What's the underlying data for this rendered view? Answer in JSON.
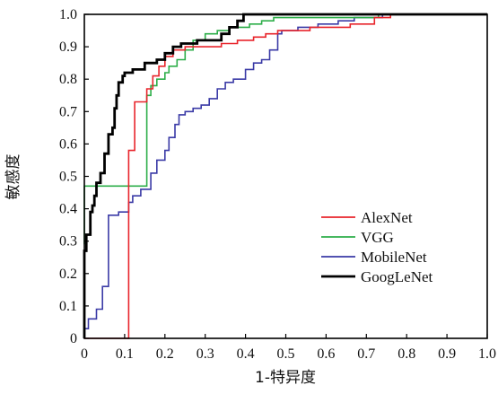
{
  "chart_data": {
    "type": "line",
    "title": "",
    "xlabel": "1-特异度",
    "ylabel": "敏感度",
    "xlim": [
      0,
      1.0
    ],
    "ylim": [
      0,
      1.0
    ],
    "x_ticks": [
      "0",
      "0.1",
      "0.2",
      "0.3",
      "0.4",
      "0.5",
      "0.6",
      "0.7",
      "0.8",
      "0.9",
      "1.0"
    ],
    "y_ticks": [
      "0",
      "0.1",
      "0.2",
      "0.3",
      "0.4",
      "0.5",
      "0.6",
      "0.7",
      "0.8",
      "0.9",
      "1.0"
    ],
    "grid": false,
    "legend_position": "lower-right",
    "series": [
      {
        "name": "AlexNet",
        "color": "#e8242b",
        "points": [
          [
            0,
            0
          ],
          [
            0.11,
            0
          ],
          [
            0.11,
            0.58
          ],
          [
            0.125,
            0.58
          ],
          [
            0.125,
            0.73
          ],
          [
            0.155,
            0.73
          ],
          [
            0.155,
            0.77
          ],
          [
            0.17,
            0.77
          ],
          [
            0.17,
            0.81
          ],
          [
            0.185,
            0.81
          ],
          [
            0.185,
            0.84
          ],
          [
            0.2,
            0.84
          ],
          [
            0.2,
            0.87
          ],
          [
            0.22,
            0.87
          ],
          [
            0.22,
            0.89
          ],
          [
            0.25,
            0.89
          ],
          [
            0.25,
            0.9
          ],
          [
            0.34,
            0.9
          ],
          [
            0.34,
            0.91
          ],
          [
            0.38,
            0.91
          ],
          [
            0.38,
            0.92
          ],
          [
            0.42,
            0.92
          ],
          [
            0.42,
            0.93
          ],
          [
            0.45,
            0.93
          ],
          [
            0.45,
            0.94
          ],
          [
            0.48,
            0.94
          ],
          [
            0.48,
            0.95
          ],
          [
            0.56,
            0.95
          ],
          [
            0.56,
            0.96
          ],
          [
            0.66,
            0.96
          ],
          [
            0.66,
            0.97
          ],
          [
            0.72,
            0.97
          ],
          [
            0.72,
            0.99
          ],
          [
            0.76,
            0.99
          ],
          [
            0.76,
            1.0
          ],
          [
            1.0,
            1.0
          ]
        ]
      },
      {
        "name": "VGG",
        "color": "#2dae49",
        "points": [
          [
            0,
            0.29
          ],
          [
            0,
            0.47
          ],
          [
            0.155,
            0.47
          ],
          [
            0.155,
            0.75
          ],
          [
            0.165,
            0.75
          ],
          [
            0.165,
            0.78
          ],
          [
            0.18,
            0.78
          ],
          [
            0.18,
            0.8
          ],
          [
            0.2,
            0.8
          ],
          [
            0.2,
            0.82
          ],
          [
            0.21,
            0.82
          ],
          [
            0.21,
            0.84
          ],
          [
            0.23,
            0.84
          ],
          [
            0.23,
            0.86
          ],
          [
            0.25,
            0.86
          ],
          [
            0.25,
            0.89
          ],
          [
            0.27,
            0.89
          ],
          [
            0.27,
            0.92
          ],
          [
            0.3,
            0.92
          ],
          [
            0.3,
            0.94
          ],
          [
            0.33,
            0.94
          ],
          [
            0.33,
            0.95
          ],
          [
            0.36,
            0.95
          ],
          [
            0.36,
            0.96
          ],
          [
            0.41,
            0.96
          ],
          [
            0.41,
            0.97
          ],
          [
            0.44,
            0.97
          ],
          [
            0.44,
            0.98
          ],
          [
            0.47,
            0.98
          ],
          [
            0.47,
            0.99
          ],
          [
            0.73,
            0.99
          ],
          [
            0.73,
            1.0
          ],
          [
            1.0,
            1.0
          ]
        ]
      },
      {
        "name": "MobileNet",
        "color": "#3a3aa6",
        "points": [
          [
            0,
            0
          ],
          [
            0,
            0.03
          ],
          [
            0.01,
            0.03
          ],
          [
            0.01,
            0.06
          ],
          [
            0.03,
            0.06
          ],
          [
            0.03,
            0.09
          ],
          [
            0.045,
            0.09
          ],
          [
            0.045,
            0.16
          ],
          [
            0.06,
            0.16
          ],
          [
            0.06,
            0.38
          ],
          [
            0.085,
            0.38
          ],
          [
            0.085,
            0.39
          ],
          [
            0.11,
            0.39
          ],
          [
            0.11,
            0.42
          ],
          [
            0.12,
            0.42
          ],
          [
            0.12,
            0.44
          ],
          [
            0.14,
            0.44
          ],
          [
            0.14,
            0.46
          ],
          [
            0.165,
            0.46
          ],
          [
            0.165,
            0.51
          ],
          [
            0.18,
            0.51
          ],
          [
            0.18,
            0.55
          ],
          [
            0.2,
            0.55
          ],
          [
            0.2,
            0.58
          ],
          [
            0.21,
            0.58
          ],
          [
            0.21,
            0.62
          ],
          [
            0.225,
            0.62
          ],
          [
            0.225,
            0.66
          ],
          [
            0.235,
            0.66
          ],
          [
            0.235,
            0.69
          ],
          [
            0.25,
            0.69
          ],
          [
            0.25,
            0.7
          ],
          [
            0.27,
            0.7
          ],
          [
            0.27,
            0.71
          ],
          [
            0.29,
            0.71
          ],
          [
            0.29,
            0.72
          ],
          [
            0.31,
            0.72
          ],
          [
            0.31,
            0.74
          ],
          [
            0.33,
            0.74
          ],
          [
            0.33,
            0.77
          ],
          [
            0.35,
            0.77
          ],
          [
            0.35,
            0.79
          ],
          [
            0.37,
            0.79
          ],
          [
            0.37,
            0.8
          ],
          [
            0.4,
            0.8
          ],
          [
            0.4,
            0.83
          ],
          [
            0.42,
            0.83
          ],
          [
            0.42,
            0.85
          ],
          [
            0.44,
            0.85
          ],
          [
            0.44,
            0.86
          ],
          [
            0.46,
            0.86
          ],
          [
            0.46,
            0.89
          ],
          [
            0.48,
            0.89
          ],
          [
            0.48,
            0.94
          ],
          [
            0.49,
            0.94
          ],
          [
            0.49,
            0.95
          ],
          [
            0.53,
            0.95
          ],
          [
            0.53,
            0.96
          ],
          [
            0.58,
            0.96
          ],
          [
            0.58,
            0.97
          ],
          [
            0.63,
            0.97
          ],
          [
            0.63,
            0.98
          ],
          [
            0.67,
            0.98
          ],
          [
            0.67,
            0.99
          ],
          [
            0.74,
            0.99
          ],
          [
            0.74,
            1.0
          ],
          [
            1.0,
            1.0
          ]
        ]
      },
      {
        "name": "GoogLeNet",
        "color": "#000000",
        "points": [
          [
            0,
            0
          ],
          [
            0,
            0.27
          ],
          [
            0.005,
            0.27
          ],
          [
            0.005,
            0.32
          ],
          [
            0.015,
            0.32
          ],
          [
            0.015,
            0.39
          ],
          [
            0.02,
            0.39
          ],
          [
            0.02,
            0.41
          ],
          [
            0.025,
            0.41
          ],
          [
            0.025,
            0.44
          ],
          [
            0.03,
            0.44
          ],
          [
            0.03,
            0.48
          ],
          [
            0.04,
            0.48
          ],
          [
            0.04,
            0.51
          ],
          [
            0.05,
            0.51
          ],
          [
            0.05,
            0.57
          ],
          [
            0.06,
            0.57
          ],
          [
            0.06,
            0.63
          ],
          [
            0.07,
            0.63
          ],
          [
            0.07,
            0.65
          ],
          [
            0.075,
            0.65
          ],
          [
            0.075,
            0.71
          ],
          [
            0.08,
            0.71
          ],
          [
            0.08,
            0.75
          ],
          [
            0.085,
            0.75
          ],
          [
            0.085,
            0.79
          ],
          [
            0.095,
            0.79
          ],
          [
            0.095,
            0.81
          ],
          [
            0.1,
            0.81
          ],
          [
            0.1,
            0.82
          ],
          [
            0.12,
            0.82
          ],
          [
            0.12,
            0.83
          ],
          [
            0.15,
            0.83
          ],
          [
            0.15,
            0.85
          ],
          [
            0.18,
            0.85
          ],
          [
            0.18,
            0.86
          ],
          [
            0.2,
            0.86
          ],
          [
            0.2,
            0.88
          ],
          [
            0.22,
            0.88
          ],
          [
            0.22,
            0.9
          ],
          [
            0.24,
            0.9
          ],
          [
            0.24,
            0.91
          ],
          [
            0.28,
            0.91
          ],
          [
            0.28,
            0.92
          ],
          [
            0.34,
            0.92
          ],
          [
            0.34,
            0.94
          ],
          [
            0.36,
            0.94
          ],
          [
            0.36,
            0.96
          ],
          [
            0.38,
            0.96
          ],
          [
            0.38,
            0.98
          ],
          [
            0.395,
            0.98
          ],
          [
            0.395,
            1.0
          ],
          [
            1.0,
            1.0
          ]
        ]
      }
    ]
  }
}
